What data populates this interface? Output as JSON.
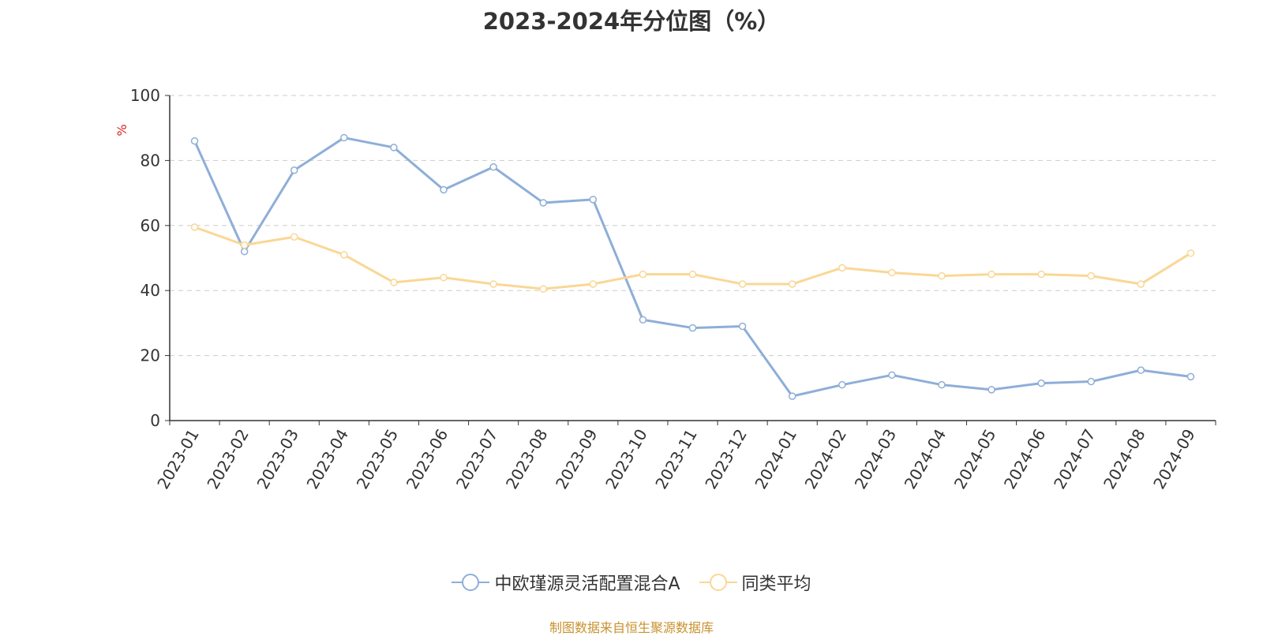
{
  "chart_data": {
    "type": "line",
    "title": "2023-2024年分位图（%）",
    "ylabel": "%",
    "xlabel": "",
    "ylim": [
      0,
      100
    ],
    "yticks": [
      "0",
      "20",
      "40",
      "60",
      "80",
      "100"
    ],
    "grid": true,
    "legend_position": "bottom",
    "categories": [
      "2023-01",
      "2023-02",
      "2023-03",
      "2023-04",
      "2023-05",
      "2023-06",
      "2023-07",
      "2023-08",
      "2023-09",
      "2023-10",
      "2023-11",
      "2023-12",
      "2024-01",
      "2024-02",
      "2024-03",
      "2024-04",
      "2024-05",
      "2024-06",
      "2024-07",
      "2024-08",
      "2024-09"
    ],
    "series": [
      {
        "name": "中欧瑾源灵活配置混合A",
        "color": "#8eaed8",
        "values": [
          86,
          52,
          77,
          87,
          84,
          71,
          78,
          67,
          68,
          31,
          28.5,
          29,
          7.5,
          11,
          14,
          11,
          9.5,
          11.5,
          12,
          15.5,
          13.5
        ]
      },
      {
        "name": "同类平均",
        "color": "#fad795",
        "values": [
          59.5,
          54,
          56.5,
          51,
          42.5,
          44,
          42,
          40.5,
          42,
          45,
          45,
          42,
          42,
          47,
          45.5,
          44.5,
          45,
          45,
          44.5,
          42,
          51.5
        ]
      }
    ]
  },
  "source": "制图数据来自恒生聚源数据库"
}
